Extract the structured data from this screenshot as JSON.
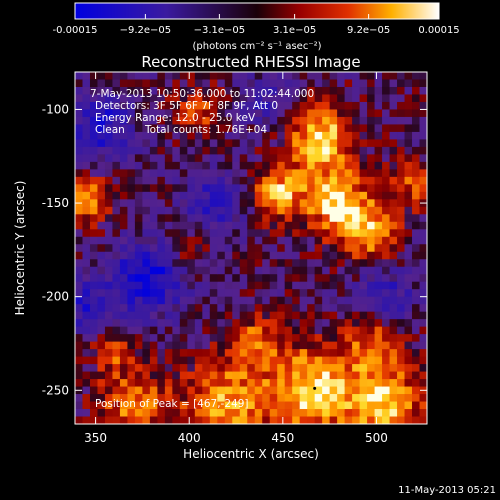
{
  "chart_data": {
    "type": "heatmap",
    "title": "Reconstructed RHESSI Image",
    "xlabel": "Heliocentric X (arcsec)",
    "ylabel": "Heliocentric Y (arcsec)",
    "xlim": [
      339,
      527
    ],
    "ylim": [
      -268,
      -80
    ],
    "x_ticks": [
      {
        "value": 350,
        "label": "350"
      },
      {
        "value": 400,
        "label": "400"
      },
      {
        "value": 450,
        "label": "450"
      },
      {
        "value": 500,
        "label": "500"
      }
    ],
    "y_ticks": [
      {
        "value": -100,
        "label": "-100"
      },
      {
        "value": -150,
        "label": "-150"
      },
      {
        "value": -200,
        "label": "-200"
      },
      {
        "value": -250,
        "label": "-250"
      }
    ],
    "colorbar": {
      "min": -0.00015,
      "max": 0.00015,
      "ticks": [
        {
          "value": -0.00015,
          "label": "-0.00015"
        },
        {
          "value": -9.2e-05,
          "label": "−9.2e−05"
        },
        {
          "value": -3.1e-05,
          "label": "−3.1e−05"
        },
        {
          "value": 3.1e-05,
          "label": "3.1e−05"
        },
        {
          "value": 9.2e-05,
          "label": "9.2e−05"
        },
        {
          "value": 0.00015,
          "label": "0.00015"
        }
      ],
      "units_label": "(photons cm⁻² s⁻¹ asec⁻²)"
    },
    "annotations": {
      "time_range": "7-May-2013 10:50:36.000 to 11:02:44.000",
      "detectors": "Detectors: 3F 5F 6F 7F 8F 9F, Att 0",
      "energy_range": "Energy Range: 12.0 - 25.0 keV",
      "method": "Clean",
      "total_counts": "Total counts: 1.76E+04",
      "peak": "Position of Peak = [467,-249]"
    },
    "grid_resolution": 4,
    "peak_position": [
      467,
      -249
    ],
    "bright_regions": [
      {
        "x": 467,
        "y": -249,
        "sigma": 16,
        "amplitude": 1.0
      },
      {
        "x": 505,
        "y": -258,
        "sigma": 14,
        "amplitude": 0.9
      },
      {
        "x": 420,
        "y": -258,
        "sigma": 16,
        "amplitude": 0.8
      },
      {
        "x": 370,
        "y": -258,
        "sigma": 14,
        "amplitude": 0.65
      },
      {
        "x": 470,
        "y": -115,
        "sigma": 12,
        "amplitude": 0.95
      },
      {
        "x": 478,
        "y": -148,
        "sigma": 12,
        "amplitude": 0.9
      },
      {
        "x": 447,
        "y": -145,
        "sigma": 10,
        "amplitude": 0.85
      },
      {
        "x": 495,
        "y": -165,
        "sigma": 11,
        "amplitude": 0.8
      },
      {
        "x": 520,
        "y": -140,
        "sigma": 9,
        "amplitude": 0.5
      },
      {
        "x": 435,
        "y": -225,
        "sigma": 10,
        "amplitude": 0.6
      },
      {
        "x": 500,
        "y": -225,
        "sigma": 11,
        "amplitude": 0.6
      },
      {
        "x": 345,
        "y": -148,
        "sigma": 9,
        "amplitude": 0.75
      },
      {
        "x": 405,
        "y": -100,
        "sigma": 9,
        "amplitude": 0.5
      },
      {
        "x": 400,
        "y": -175,
        "sigma": 8,
        "amplitude": 0.4
      },
      {
        "x": 360,
        "y": -228,
        "sigma": 8,
        "amplitude": 0.5
      }
    ],
    "dark_regions": [
      {
        "x": 378,
        "y": -190,
        "sigma": 14,
        "amplitude": 0.85
      },
      {
        "x": 353,
        "y": -110,
        "sigma": 12,
        "amplitude": 0.75
      },
      {
        "x": 415,
        "y": -150,
        "sigma": 12,
        "amplitude": 0.6
      },
      {
        "x": 505,
        "y": -200,
        "sigma": 12,
        "amplitude": 0.5
      },
      {
        "x": 440,
        "y": -95,
        "sigma": 10,
        "amplitude": 0.45
      },
      {
        "x": 345,
        "y": -205,
        "sigma": 10,
        "amplitude": 0.55
      }
    ]
  },
  "footer": {
    "timestamp": "11-May-2013 05:21"
  }
}
